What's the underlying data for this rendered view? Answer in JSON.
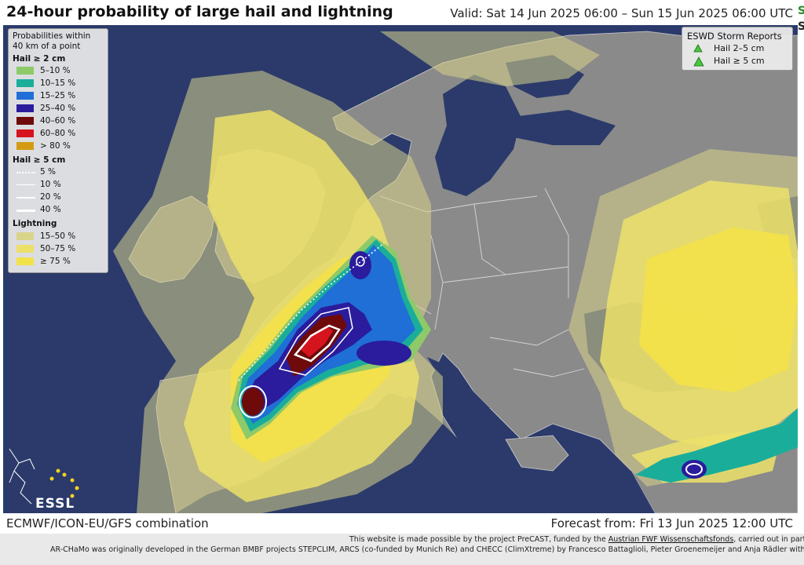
{
  "title": "24-hour probability of large hail and lightning",
  "valid": "Valid: Sat 14 Jun 2025 06:00 – Sun 15 Jun 2025 06:00 UTC",
  "edge_chars": [
    "S",
    "S"
  ],
  "legend": {
    "heading_line1": "Probabilities within",
    "heading_line2": "40 km of a point",
    "hail2": {
      "title": "Hail ≥ 2 cm",
      "items": [
        {
          "label": "5–10 %",
          "color": "#8ec96a"
        },
        {
          "label": "10–15 %",
          "color": "#1aae9a"
        },
        {
          "label": "15–25 %",
          "color": "#1f6fd6"
        },
        {
          "label": "25–40 %",
          "color": "#2a1c9c"
        },
        {
          "label": "40–60 %",
          "color": "#6e0a0a"
        },
        {
          "label": "60–80 %",
          "color": "#d6141e"
        },
        {
          "label": "> 80 %",
          "color": "#d49a14"
        }
      ]
    },
    "hail5": {
      "title": "Hail ≥ 5 cm",
      "items": [
        {
          "label": "5 %",
          "style": "dotted"
        },
        {
          "label": "10 %",
          "style": "thin"
        },
        {
          "label": "20 %",
          "style": "medium"
        },
        {
          "label": "40 %",
          "style": "thick"
        }
      ]
    },
    "lightning": {
      "title": "Lightning",
      "items": [
        {
          "label": "15–50 %",
          "color": "#d9d48a"
        },
        {
          "label": "50–75 %",
          "color": "#ece06a"
        },
        {
          "label": "≥ 75 %",
          "color": "#f2e24a"
        }
      ]
    }
  },
  "reports": {
    "title": "ESWD Storm Reports",
    "items": [
      {
        "label": "Hail 2–5 cm",
        "color": "#46c83c"
      },
      {
        "label": "Hail ≥ 5 cm",
        "color": "#46c83c"
      }
    ]
  },
  "logo_text": "ESSL",
  "footer": {
    "model": "ECMWF/ICON-EU/GFS combination",
    "forecast": "Forecast from: Fri 13 Jun 2025 12:00 UTC",
    "note1_prefix": "This website is made possible by the project PreCAST, funded by the ",
    "note1_link": "Austrian FWF Wissenschaftsfonds",
    "note1_suffix": ", carried out in partnership",
    "note2": "AR-CHaMo was originally developed in the German BMBF projects STEPCLIM, ARCS (co-funded by Munich Re) and CHECC (ClimXtreme) by Francesco Battaglioli, Pieter Groenemeijer and Anja Rädler with suppo"
  },
  "colors": {
    "sea": "#2b3a6b",
    "land": "#8a8a8a",
    "border": "#cfcfcf",
    "light_yellow": "#d9d48a",
    "yellow": "#ece06a",
    "bright_yellow": "#f2e24a"
  }
}
